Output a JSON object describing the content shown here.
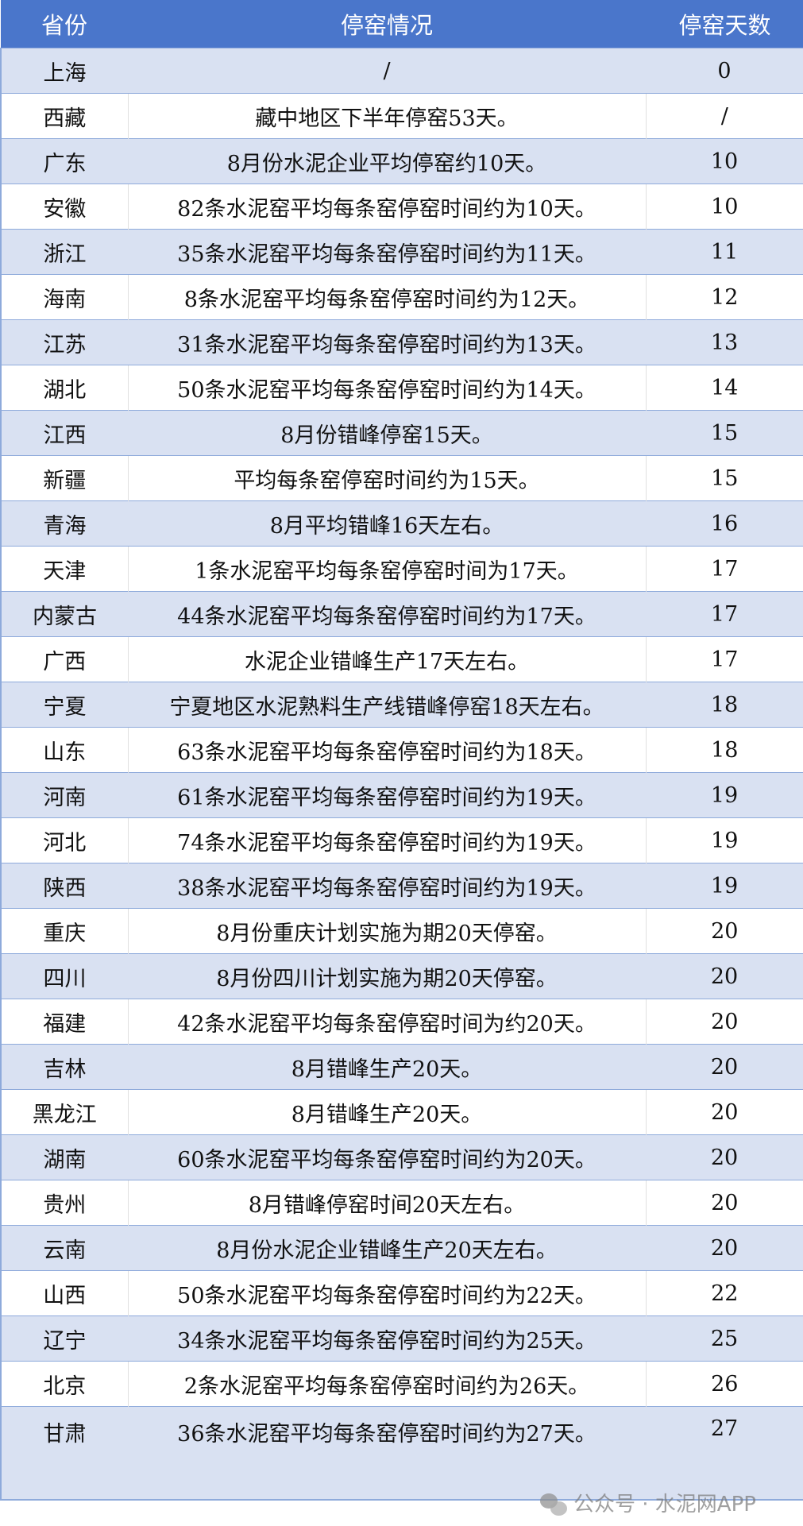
{
  "headers": [
    "省份",
    "停窑情况",
    "停窑天数"
  ],
  "rows": [
    [
      "上海",
      "/",
      "0"
    ],
    [
      "西藏",
      "藏中地区下半年停窑53天。",
      "/"
    ],
    [
      "广东",
      "8月份水泥企业平均停窑约10天。",
      "10"
    ],
    [
      "安徽",
      "82条水泥窑平均每条窑停窑时间约为10天。",
      "10"
    ],
    [
      "浙江",
      "35条水泥窑平均每条窑停窑时间约为11天。",
      "11"
    ],
    [
      "海南",
      "8条水泥窑平均每条窑停窑时间约为12天。",
      "12"
    ],
    [
      "江苏",
      "31条水泥窑平均每条窑停窑时间约为13天。",
      "13"
    ],
    [
      "湖北",
      "50条水泥窑平均每条窑停窑时间约为14天。",
      "14"
    ],
    [
      "江西",
      "8月份错峰停窑15天。",
      "15"
    ],
    [
      "新疆",
      "平均每条窑停窑时间约为15天。",
      "15"
    ],
    [
      "青海",
      "8月平均错峰16天左右。",
      "16"
    ],
    [
      "天津",
      "1条水泥窑平均每条窑停窑时间为17天。",
      "17"
    ],
    [
      "内蒙古",
      "44条水泥窑平均每条窑停窑时间约为17天。",
      "17"
    ],
    [
      "广西",
      "水泥企业错峰生产17天左右。",
      "17"
    ],
    [
      "宁夏",
      "宁夏地区水泥熟料生产线错峰停窑18天左右。",
      "18"
    ],
    [
      "山东",
      "63条水泥窑平均每条窑停窑时间约为18天。",
      "18"
    ],
    [
      "河南",
      "61条水泥窑平均每条窑停窑时间约为19天。",
      "19"
    ],
    [
      "河北",
      "74条水泥窑平均每条窑停窑时间约为19天。",
      "19"
    ],
    [
      "陕西",
      "38条水泥窑平均每条窑停窑时间约为19天。",
      "19"
    ],
    [
      "重庆",
      "8月份重庆计划实施为期20天停窑。",
      "20"
    ],
    [
      "四川",
      "8月份四川计划实施为期20天停窑。",
      "20"
    ],
    [
      "福建",
      "42条水泥窑平均每条窑停窑时间为约20天。",
      "20"
    ],
    [
      "吉林",
      "8月错峰生产20天。",
      "20"
    ],
    [
      "黑龙江",
      "8月错峰生产20天。",
      "20"
    ],
    [
      "湖南",
      "60条水泥窑平均每条窑停窑时间约为20天。",
      "20"
    ],
    [
      "贵州",
      "8月错峰停窑时间20天左右。",
      "20"
    ],
    [
      "云南",
      "8月份水泥企业错峰生产20天左右。",
      "20"
    ],
    [
      "山西",
      "50条水泥窑平均每条窑停窑时间约为22天。",
      "22"
    ],
    [
      "辽宁",
      "34条水泥窑平均每条窑停窑时间约为25天。",
      "25"
    ],
    [
      "北京",
      "2条水泥窑平均每条窑停窑时间约为26天。",
      "26"
    ],
    [
      "甘肃",
      "36条水泥窑平均每条窑停窑时间约为27天。",
      "27"
    ]
  ],
  "watermark": "公众号 · 水泥网APP",
  "colors": {
    "header": "#4a76cb",
    "stripe": "#d9e1f2",
    "border": "#8eaadb"
  }
}
